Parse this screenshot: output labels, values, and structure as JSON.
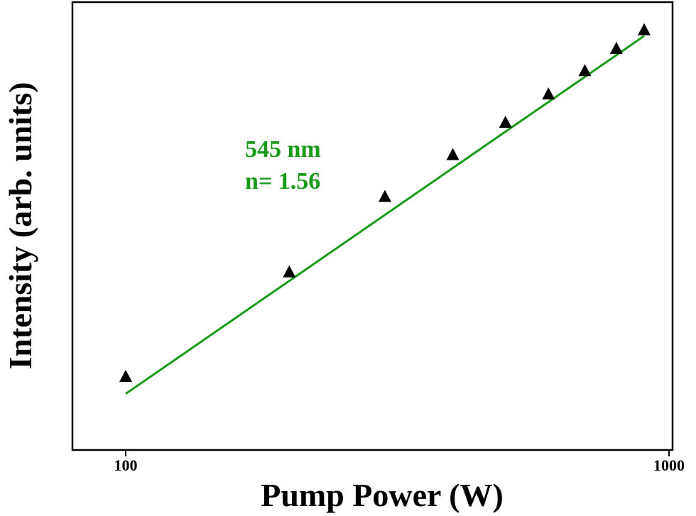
{
  "chart_data": {
    "type": "scatter",
    "xlabel": "Pump Power (W)",
    "ylabel": "Intensity (arb. units)",
    "x_scale": "log",
    "y_scale": "log",
    "xlim": [
      82,
      1050
    ],
    "x_ticks": [
      100,
      1000
    ],
    "x_tick_labels": [
      "100",
      "1000"
    ],
    "y_ticks_shown": false,
    "grid": false,
    "legend": "none",
    "series": [
      {
        "marker": "triangle",
        "color": "#000000",
        "x": [
          100,
          200,
          300,
          400,
          500,
          600,
          700,
          800,
          900
        ],
        "y": [
          1.0,
          2.73,
          5.64,
          8.43,
          11.5,
          15.1,
          18.9,
          23.4,
          28.0
        ]
      }
    ],
    "fit": {
      "color": "#1a9a1a",
      "x": [
        100,
        900
      ],
      "y": [
        0.85,
        26.5
      ],
      "slope": 1.56
    },
    "annotations": {
      "line1": "545 nm",
      "line2": "n= 1.56",
      "color": "#1a9a1a"
    }
  }
}
